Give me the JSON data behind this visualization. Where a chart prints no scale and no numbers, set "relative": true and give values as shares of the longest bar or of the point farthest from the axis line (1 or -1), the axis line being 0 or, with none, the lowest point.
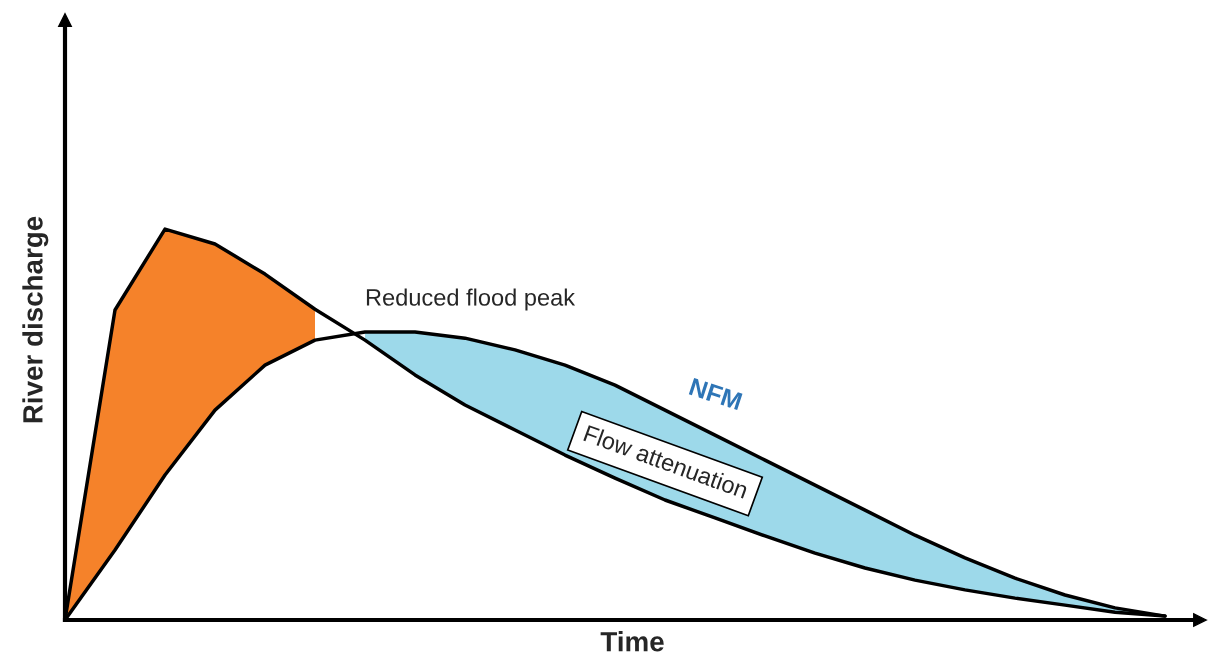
{
  "chart_data": {
    "type": "line",
    "relative": true,
    "xlabel": "Time",
    "ylabel": "River discharge",
    "categories": [
      null,
      null,
      null,
      null,
      null,
      null,
      null,
      null,
      null,
      null,
      null,
      null,
      null,
      null,
      null,
      null,
      null,
      null,
      null,
      null,
      null,
      null,
      null
    ],
    "series": [
      {
        "color": "#000000",
        "values": [
          0,
          0.793,
          1.0,
          0.962,
          0.885,
          0.795,
          0.716,
          0.627,
          0.55,
          0.486,
          0.422,
          0.363,
          0.307,
          0.261,
          0.215,
          0.171,
          0.133,
          0.102,
          0.077,
          0.056,
          0.038,
          0.02,
          0.01
        ],
        "lower": [
          0,
          0.179,
          0.371,
          0.537,
          0.652,
          0.716,
          null,
          null,
          null,
          null,
          null,
          null,
          null,
          null,
          null,
          null,
          null,
          null,
          null,
          null,
          null,
          null,
          null
        ],
        "upper": [
          0,
          0.793,
          1.0,
          0.962,
          0.885,
          0.795,
          null,
          null,
          null,
          null,
          null,
          null,
          null,
          null,
          null,
          null,
          null,
          null,
          null,
          null,
          null,
          null,
          null
        ],
        "colors": [
          "#f5822a",
          "#f5822a",
          "#f5822a",
          "#f5822a",
          "#f5822a",
          "#f5822a",
          null,
          null,
          null,
          null,
          null,
          null,
          null,
          null,
          null,
          null,
          null,
          null,
          null,
          null,
          null,
          null,
          null
        ]
      },
      {
        "name": "NFM",
        "color": "#000000",
        "values": [
          0,
          0.179,
          0.371,
          0.537,
          0.652,
          0.716,
          0.737,
          0.737,
          0.721,
          0.691,
          0.652,
          0.601,
          0.537,
          0.473,
          0.409,
          0.345,
          0.281,
          0.217,
          0.159,
          0.107,
          0.064,
          0.031,
          0.01
        ],
        "lower": [
          null,
          null,
          null,
          null,
          null,
          null,
          0.716,
          0.627,
          0.55,
          0.486,
          0.422,
          0.363,
          0.307,
          0.261,
          0.215,
          0.171,
          0.133,
          0.102,
          0.077,
          0.056,
          0.038,
          0.02,
          0.01
        ],
        "upper": [
          null,
          null,
          null,
          null,
          null,
          null,
          0.737,
          0.737,
          0.721,
          0.691,
          0.652,
          0.601,
          0.537,
          0.473,
          0.409,
          0.345,
          0.281,
          0.217,
          0.159,
          0.107,
          0.064,
          0.031,
          0.01
        ],
        "colors": [
          null,
          null,
          null,
          null,
          null,
          null,
          "#9dd9ea",
          "#9dd9ea",
          "#9dd9ea",
          "#9dd9ea",
          "#9dd9ea",
          "#9dd9ea",
          "#9dd9ea",
          "#9dd9ea",
          "#9dd9ea",
          "#9dd9ea",
          "#9dd9ea",
          "#9dd9ea",
          "#9dd9ea",
          "#9dd9ea",
          "#9dd9ea",
          "#9dd9ea",
          "#9dd9ea"
        ]
      }
    ],
    "annotations": [
      "Reduced flood peak",
      "Flow attenuation"
    ],
    "legend": false,
    "marker": "none",
    "line_style": "solid"
  }
}
